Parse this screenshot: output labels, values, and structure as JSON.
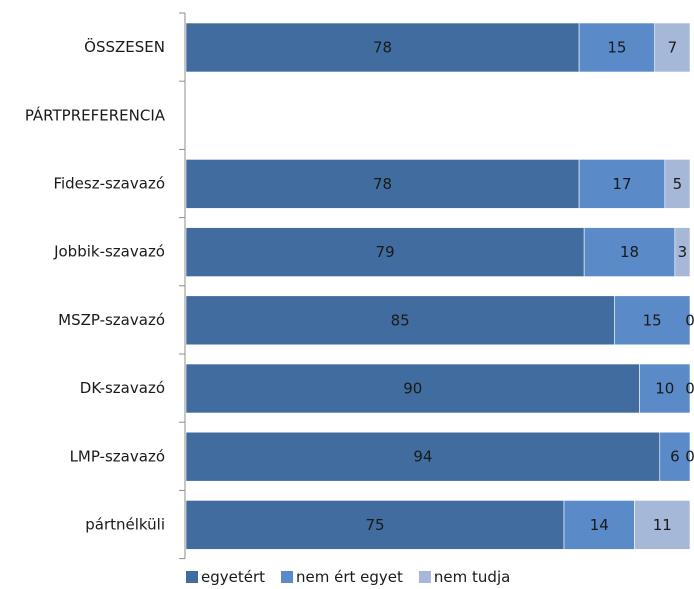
{
  "chart_data": {
    "type": "bar",
    "orientation": "horizontal",
    "stacked": true,
    "categories": [
      "ÖSSZESEN",
      "PÁRTPREFERENCIA",
      "Fidesz-szavazó",
      "Jobbik-szavazó",
      "MSZP-szavazó",
      "DK-szavazó",
      "LMP-szavazó",
      "pártnélküli"
    ],
    "series": [
      {
        "name": "egyetért",
        "color": "#416c9f",
        "values": [
          78,
          null,
          78,
          79,
          85,
          90,
          94,
          75
        ]
      },
      {
        "name": "nem ért egyet",
        "color": "#5b8ac8",
        "values": [
          15,
          null,
          17,
          18,
          15,
          10,
          6,
          14
        ]
      },
      {
        "name": "nem tudja",
        "color": "#a6b8d8",
        "values": [
          7,
          null,
          5,
          3,
          0,
          0,
          0,
          11
        ]
      }
    ],
    "xlim": [
      0,
      100
    ],
    "grid": false,
    "legend_position": "bottom"
  }
}
